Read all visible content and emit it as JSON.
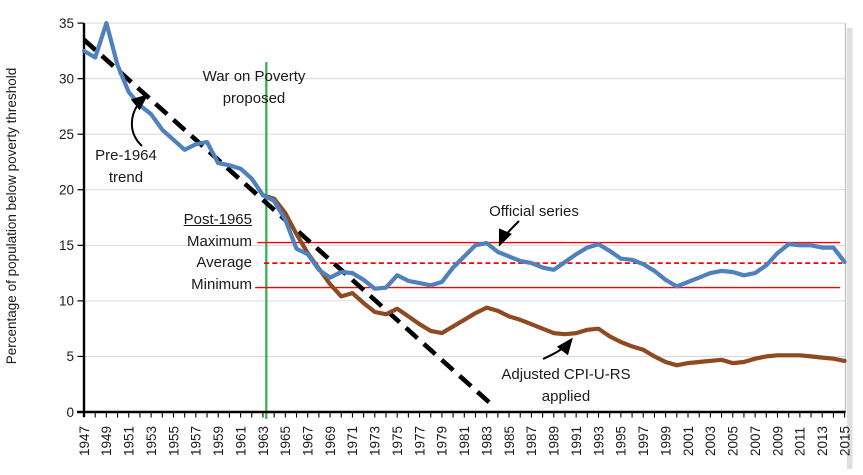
{
  "chart_data": {
    "type": "line",
    "title": "",
    "xlabel": "",
    "ylabel": "Percentage of population below poverty threshold",
    "ylim": [
      0,
      35
    ],
    "xlim": [
      1947,
      2015
    ],
    "yticks": [
      0,
      5,
      10,
      15,
      20,
      25,
      30,
      35
    ],
    "xtick_labels": [
      "1947",
      "1949",
      "1951",
      "1953",
      "1955",
      "1957",
      "1959",
      "1961",
      "1963",
      "1965",
      "1967",
      "1969",
      "1971",
      "1973",
      "1975",
      "1977",
      "1979",
      "1981",
      "1983",
      "1985",
      "1987",
      "1989",
      "1991",
      "1993",
      "1995",
      "1997",
      "1999",
      "2001",
      "2003",
      "2005",
      "2007",
      "2009",
      "2011",
      "2013",
      "2015"
    ],
    "grid": "horizontal",
    "legend": "none",
    "colors": {
      "official": "#4F81BD",
      "adjusted": "#8E4B21",
      "trend": "#000000",
      "event": "#2CB04A",
      "reference": "#FF0000",
      "gridline": "#D9D9D9",
      "axis": "#000000"
    },
    "series": [
      {
        "name": "Official series",
        "color": "#4F81BD",
        "start_year": 1947,
        "values": [
          32.5,
          31.9,
          35.0,
          31.2,
          28.8,
          27.6,
          26.8,
          25.4,
          24.5,
          23.6,
          24.1,
          24.3,
          22.4,
          22.2,
          21.9,
          21.0,
          19.5,
          19.0,
          17.3,
          14.7,
          14.2,
          12.8,
          12.1,
          12.6,
          12.5,
          11.9,
          11.1,
          11.2,
          12.3,
          11.8,
          11.6,
          11.4,
          11.7,
          13.0,
          14.0,
          15.0,
          15.2,
          14.4,
          14.0,
          13.6,
          13.4,
          13.0,
          12.8,
          13.5,
          14.2,
          14.8,
          15.1,
          14.5,
          13.8,
          13.7,
          13.3,
          12.7,
          11.9,
          11.3,
          11.7,
          12.1,
          12.5,
          12.7,
          12.6,
          12.3,
          12.5,
          13.2,
          14.3,
          15.1,
          15.0,
          15.0,
          14.8,
          14.8,
          13.5
        ]
      },
      {
        "name": "Adjusted CPI-U-RS applied",
        "color": "#8E4B21",
        "start_year": 1963,
        "values": [
          19.5,
          19.2,
          17.9,
          16.0,
          14.3,
          12.9,
          11.5,
          10.4,
          10.7,
          9.8,
          9.0,
          8.8,
          9.3,
          8.6,
          7.9,
          7.3,
          7.1,
          7.7,
          8.3,
          8.9,
          9.4,
          9.1,
          8.6,
          8.3,
          7.9,
          7.5,
          7.1,
          7.0,
          7.1,
          7.4,
          7.5,
          6.8,
          6.3,
          5.9,
          5.6,
          5.0,
          4.5,
          4.2,
          4.4,
          4.5,
          4.6,
          4.7,
          4.4,
          4.5,
          4.8,
          5.0,
          5.1,
          5.1,
          5.1,
          5.0,
          4.9,
          4.8,
          4.6
        ]
      },
      {
        "name": "Pre-1964 trend",
        "color": "#000000",
        "style": "dashed",
        "points": [
          [
            1947,
            33.5
          ],
          [
            1983.3,
            0.8
          ]
        ]
      }
    ],
    "reference_lines": [
      {
        "label": "Maximum",
        "value": 15.25,
        "color": "#FF0000",
        "style": "solid",
        "x_start": 1962.5,
        "x_end": 2014.6
      },
      {
        "label": "Average",
        "value": 13.4,
        "color": "#FF0000",
        "style": "dashed",
        "x_start": 1963.1,
        "x_end": 2014.8
      },
      {
        "label": "Minimum",
        "value": 11.2,
        "color": "#FF0000",
        "style": "solid",
        "x_start": 1962.3,
        "x_end": 2014.6
      }
    ],
    "event_line": {
      "label": "War on Poverty proposed",
      "year": 1963.3,
      "color": "#2CB04A"
    },
    "annotations": {
      "pre_trend_line1": "Pre-1964",
      "pre_trend_line2": "trend",
      "war_line1": "War on Poverty",
      "war_line2": "proposed",
      "post_header": "Post-1965",
      "official": "Official series",
      "adjusted_line1": "Adjusted CPI-U-RS",
      "adjusted_line2": "applied"
    }
  }
}
